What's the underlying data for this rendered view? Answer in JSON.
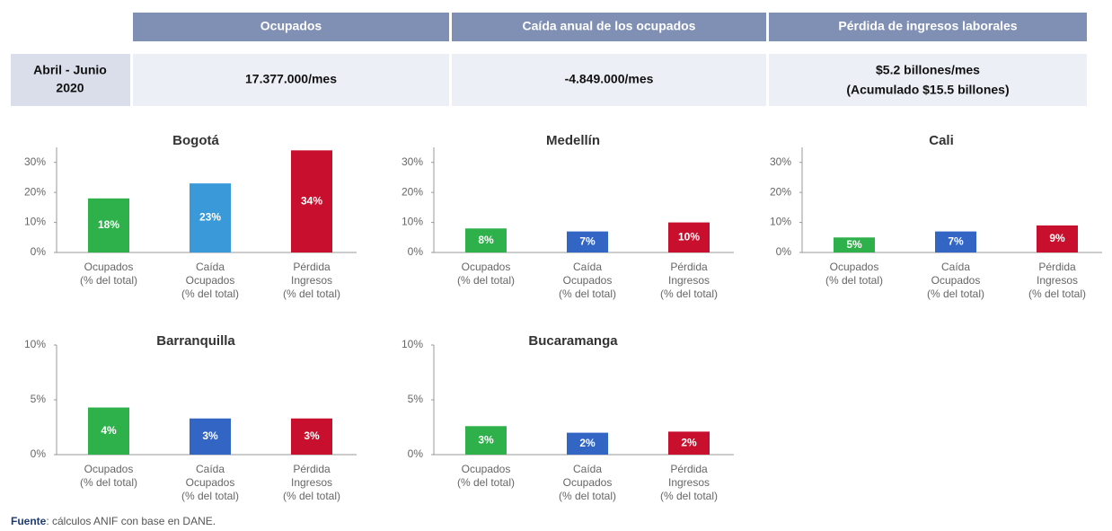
{
  "table": {
    "headers": [
      "Ocupados",
      "Caída anual de los ocupados",
      "Pérdida de ingresos laborales"
    ],
    "row_label": [
      "Abril - Junio",
      "2020"
    ],
    "cells": [
      [
        "17.377.000/mes"
      ],
      [
        "-4.849.000/mes"
      ],
      [
        "$5.2 billones/mes",
        "(Acumulado $15.5 billones)"
      ]
    ]
  },
  "chart_data": [
    {
      "type": "bar",
      "title": "Bogotá",
      "categories": [
        [
          "Ocupados",
          "(% del total)"
        ],
        [
          "Caída",
          "Ocupados",
          "(% del total)"
        ],
        [
          "Pérdida",
          "Ingresos",
          "(% del total)"
        ]
      ],
      "values": [
        18,
        23,
        34
      ],
      "value_labels": [
        "18%",
        "23%",
        "34%"
      ],
      "colors": [
        "#2eb04b",
        "#3a9ad9",
        "#c8102e"
      ],
      "ylim": [
        0,
        35
      ],
      "yticks": [
        {
          "value": 0,
          "label": "0%"
        },
        {
          "value": 10,
          "label": "10%"
        },
        {
          "value": 20,
          "label": "20%"
        },
        {
          "value": 30,
          "label": "30%"
        }
      ]
    },
    {
      "type": "bar",
      "title": "Medellín",
      "categories": [
        [
          "Ocupados",
          "(% del total)"
        ],
        [
          "Caída",
          "Ocupados",
          "(% del total)"
        ],
        [
          "Pérdida",
          "Ingresos",
          "(% del total)"
        ]
      ],
      "values": [
        8,
        7,
        10
      ],
      "value_labels": [
        "8%",
        "7%",
        "10%"
      ],
      "colors": [
        "#2eb04b",
        "#3366c4",
        "#c8102e"
      ],
      "ylim": [
        0,
        35
      ],
      "yticks": [
        {
          "value": 0,
          "label": "0%"
        },
        {
          "value": 10,
          "label": "10%"
        },
        {
          "value": 20,
          "label": "20%"
        },
        {
          "value": 30,
          "label": "30%"
        }
      ]
    },
    {
      "type": "bar",
      "title": "Cali",
      "categories": [
        [
          "Ocupados",
          "(% del total)"
        ],
        [
          "Caída",
          "Ocupados",
          "(% del total)"
        ],
        [
          "Pérdida",
          "Ingresos",
          "(% del total)"
        ]
      ],
      "values": [
        5,
        7,
        9
      ],
      "value_labels": [
        "5%",
        "7%",
        "9%"
      ],
      "colors": [
        "#2eb04b",
        "#3366c4",
        "#c8102e"
      ],
      "ylim": [
        0,
        35
      ],
      "yticks": [
        {
          "value": 0,
          "label": "0%"
        },
        {
          "value": 10,
          "label": "10%"
        },
        {
          "value": 20,
          "label": "20%"
        },
        {
          "value": 30,
          "label": "30%"
        }
      ]
    },
    {
      "type": "bar",
      "title": "Barranquilla",
      "categories": [
        [
          "Ocupados",
          "(% del total)"
        ],
        [
          "Caída",
          "Ocupados",
          "(% del total)"
        ],
        [
          "Pérdida",
          "Ingresos",
          "(% del total)"
        ]
      ],
      "values": [
        4.3,
        3.3,
        3.3
      ],
      "value_labels": [
        "4%",
        "3%",
        "3%"
      ],
      "colors": [
        "#2eb04b",
        "#3366c4",
        "#c8102e"
      ],
      "ylim": [
        0,
        10
      ],
      "yticks": [
        {
          "value": 0,
          "label": "0%"
        },
        {
          "value": 5,
          "label": "5%"
        },
        {
          "value": 10,
          "label": "10%"
        }
      ]
    },
    {
      "type": "bar",
      "title": "Bucaramanga",
      "categories": [
        [
          "Ocupados",
          "(% del total)"
        ],
        [
          "Caída",
          "Ocupados",
          "(% del total)"
        ],
        [
          "Pérdida",
          "Ingresos",
          "(% del total)"
        ]
      ],
      "values": [
        2.6,
        2.0,
        2.1
      ],
      "value_labels": [
        "3%",
        "2%",
        "2%"
      ],
      "colors": [
        "#2eb04b",
        "#3366c4",
        "#c8102e"
      ],
      "ylim": [
        0,
        10
      ],
      "yticks": [
        {
          "value": 0,
          "label": "0%"
        },
        {
          "value": 5,
          "label": "5%"
        },
        {
          "value": 10,
          "label": "10%"
        }
      ]
    }
  ],
  "footnote": {
    "label": "Fuente",
    "text": ": cálculos ANIF con base en DANE."
  }
}
